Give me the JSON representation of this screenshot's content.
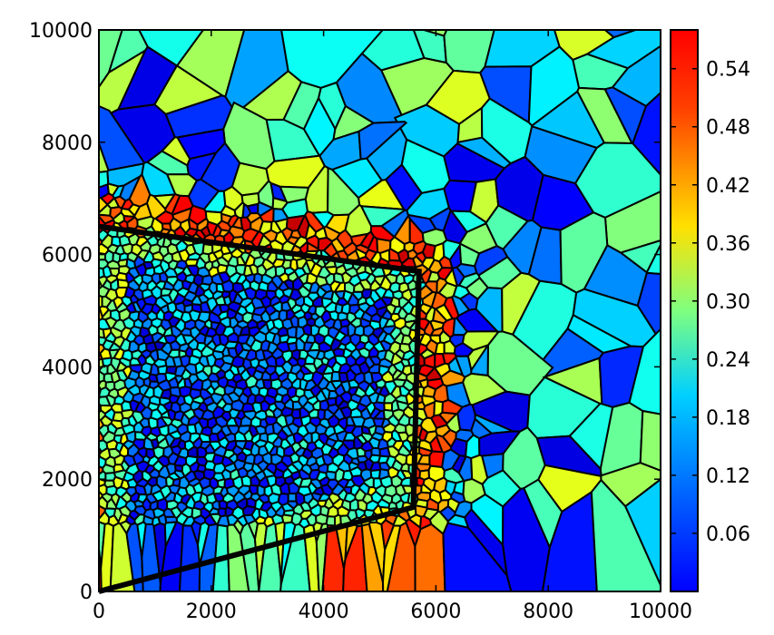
{
  "chart_data": {
    "type": "heatmap",
    "subtype": "voronoi-mesh",
    "title": "",
    "xlabel": "",
    "ylabel": "",
    "xlim": [
      0,
      10000
    ],
    "ylim": [
      0,
      10000
    ],
    "x_ticks": [
      0,
      2000,
      4000,
      6000,
      8000,
      10000
    ],
    "y_ticks": [
      0,
      2000,
      4000,
      6000,
      8000,
      10000
    ],
    "x_tick_labels": [
      "0",
      "2000",
      "4000",
      "6000",
      "8000",
      "10000"
    ],
    "y_tick_labels": [
      "0",
      "2000",
      "4000",
      "6000",
      "8000",
      "10000"
    ],
    "colormap": "jet",
    "colorbar": {
      "vmin": 0.0,
      "vmax": 0.58,
      "ticks": [
        0.06,
        0.12,
        0.18,
        0.24,
        0.3,
        0.36,
        0.42,
        0.48,
        0.54
      ],
      "tick_labels": [
        "0.06",
        "0.12",
        "0.18",
        "0.24",
        "0.30",
        "0.36",
        "0.42",
        "0.48",
        "0.54"
      ]
    },
    "boundary_polygon": [
      [
        0,
        6500
      ],
      [
        5700,
        5700
      ],
      [
        5600,
        1500
      ],
      [
        0,
        0
      ]
    ],
    "grid": false
  }
}
